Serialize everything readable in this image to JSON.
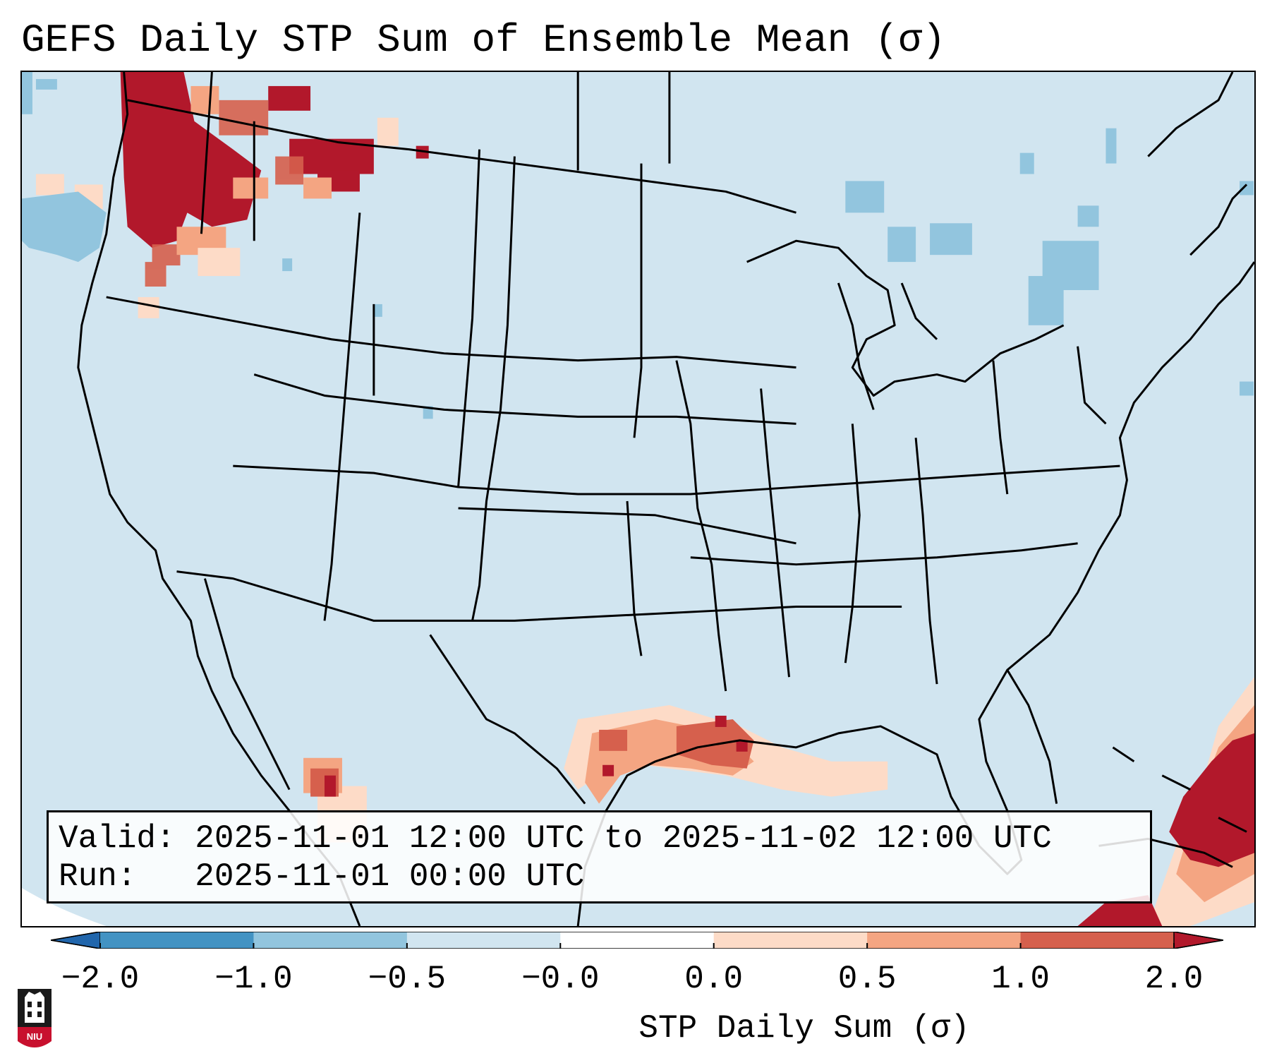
{
  "title": "GEFS Daily STP Sum of Ensemble Mean (σ)",
  "info": {
    "valid_line": "Valid: 2025-11-01 12:00 UTC to 2025-11-02 12:00 UTC",
    "run_line": "Run:   2025-11-01 00:00 UTC"
  },
  "colorbar": {
    "label": "STP Daily Sum (σ)",
    "ticks": [
      "−2.0",
      "−1.0",
      "−0.5",
      "−0.0",
      "0.0",
      "0.5",
      "1.0",
      "2.0"
    ],
    "colors": [
      "#2166ac",
      "#4393c3",
      "#92c5de",
      "#d1e5f0",
      "#fddbc7",
      "#f4a582",
      "#d6604d",
      "#b2182b"
    ]
  },
  "logo": {
    "text": "NIU"
  }
}
